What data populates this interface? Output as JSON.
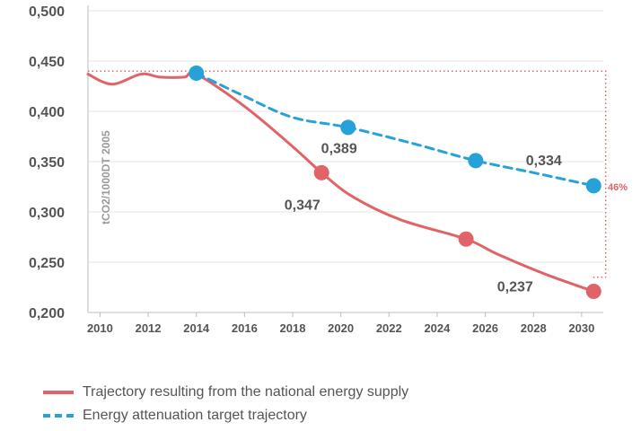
{
  "chart_data": {
    "type": "line",
    "title": "",
    "xlabel": "",
    "ylabel": "tCO2/1000DT 2005",
    "xlim": [
      2009.5,
      2030.9
    ],
    "ylim": [
      0.2,
      0.5
    ],
    "x_ticks": [
      2010,
      2012,
      2014,
      2016,
      2018,
      2020,
      2022,
      2024,
      2026,
      2028,
      2030
    ],
    "y_ticks": [
      0.2,
      0.25,
      0.3,
      0.35,
      0.4,
      0.45,
      0.5
    ],
    "y_tick_labels": [
      "0,200",
      "0,250",
      "0,300",
      "0,350",
      "0,400",
      "0,450",
      "0,500"
    ],
    "grid": true,
    "series": [
      {
        "name": "Trajectory resulting from the national energy supply",
        "color": "#e06467",
        "style": "solid",
        "points": [
          {
            "x": 2009.5,
            "y": 0.437
          },
          {
            "x": 2010.5,
            "y": 0.427
          },
          {
            "x": 2011.7,
            "y": 0.437
          },
          {
            "x": 2012.5,
            "y": 0.434
          },
          {
            "x": 2013.5,
            "y": 0.434
          },
          {
            "x": 2014.0,
            "y": 0.437
          },
          {
            "x": 2016.0,
            "y": 0.405
          },
          {
            "x": 2018.0,
            "y": 0.365
          },
          {
            "x": 2019.2,
            "y": 0.339
          },
          {
            "x": 2020.5,
            "y": 0.315
          },
          {
            "x": 2022.5,
            "y": 0.292
          },
          {
            "x": 2025.2,
            "y": 0.273
          },
          {
            "x": 2026.5,
            "y": 0.258
          },
          {
            "x": 2028.5,
            "y": 0.238
          },
          {
            "x": 2030.5,
            "y": 0.221
          }
        ],
        "markers": [
          {
            "x": 2019.2,
            "y": 0.339
          },
          {
            "x": 2025.2,
            "y": 0.273
          },
          {
            "x": 2030.5,
            "y": 0.221
          }
        ]
      },
      {
        "name": "Energy attenuation target trajectory",
        "color": "#27a2d8",
        "style": "dashed",
        "points": [
          {
            "x": 2014.0,
            "y": 0.438
          },
          {
            "x": 2016.0,
            "y": 0.415
          },
          {
            "x": 2018.0,
            "y": 0.394
          },
          {
            "x": 2020.3,
            "y": 0.384
          },
          {
            "x": 2023.0,
            "y": 0.368
          },
          {
            "x": 2025.6,
            "y": 0.351
          },
          {
            "x": 2028.0,
            "y": 0.339
          },
          {
            "x": 2030.5,
            "y": 0.326
          }
        ],
        "markers": [
          {
            "x": 2014.0,
            "y": 0.438
          },
          {
            "x": 2020.3,
            "y": 0.384
          },
          {
            "x": 2025.6,
            "y": 0.351
          },
          {
            "x": 2030.5,
            "y": 0.326
          }
        ]
      }
    ],
    "data_labels": [
      {
        "text": "0,389",
        "x": 2020.3,
        "y": 0.389,
        "anchor": "below-left-of-point"
      },
      {
        "text": "0,347",
        "x": 2018.7,
        "y": 0.347,
        "anchor": "below-left"
      },
      {
        "text": "0,334",
        "x": 2029.4,
        "y": 0.334,
        "anchor": "above-left"
      },
      {
        "text": "0,237",
        "x": 2029.4,
        "y": 0.237,
        "anchor": "left"
      }
    ],
    "reference": {
      "level": 0.44,
      "from_x": 2009.5,
      "to_x": 2031.0,
      "to_y": 0.235,
      "color": "#e06467",
      "label": "46%"
    },
    "legend": [
      {
        "label": "Trajectory resulting from the national energy supply",
        "style": "solid",
        "color": "#e06467"
      },
      {
        "label": "Energy attenuation target trajectory",
        "style": "dashed",
        "color": "#27a2d8"
      }
    ]
  }
}
